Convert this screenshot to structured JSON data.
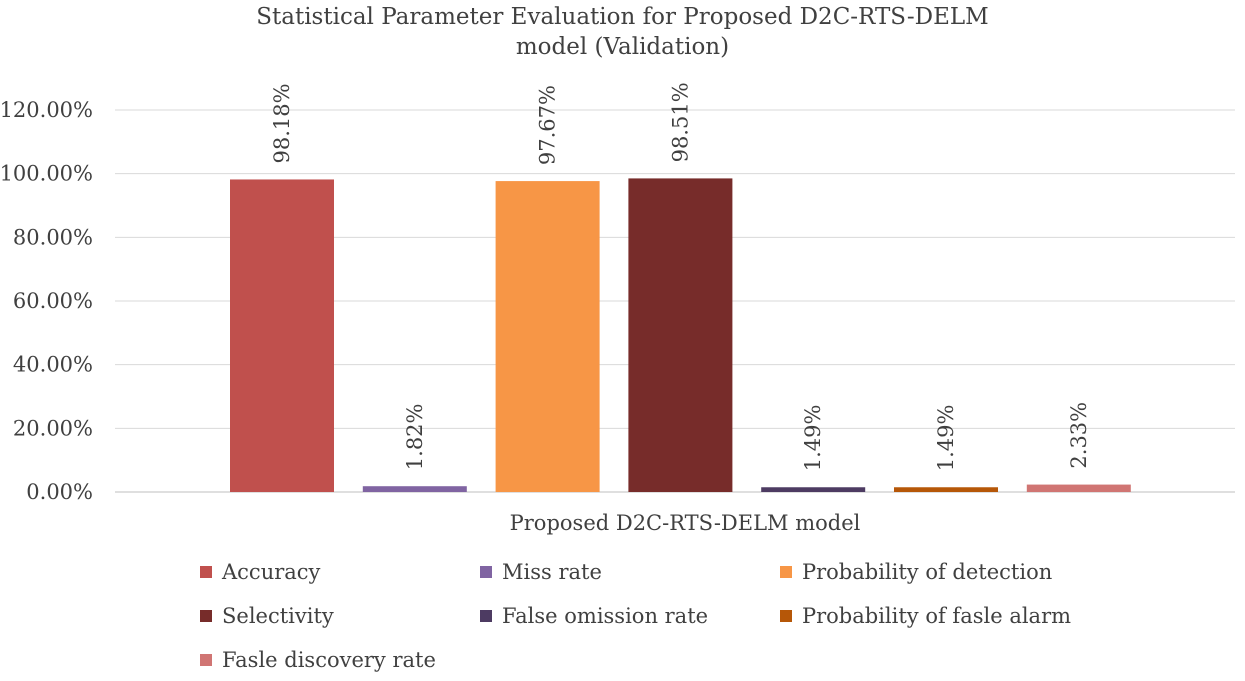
{
  "chart_data": {
    "type": "bar",
    "title_line1": "Statistical Parameter Evaluation for Proposed D2C-RTS-DELM",
    "title_line2": "model (Validation)",
    "xlabel": "Proposed D2C-RTS-DELM model",
    "ylabel": "",
    "ylim": [
      0,
      120
    ],
    "yticks": [
      "0.00%",
      "20.00%",
      "40.00%",
      "60.00%",
      "80.00%",
      "100.00%",
      "120.00%"
    ],
    "grid": true,
    "legend_position": "bottom",
    "series": [
      {
        "name": "Accuracy",
        "value": 98.18,
        "label": "98.18%",
        "color": "#C0504D"
      },
      {
        "name": "Miss rate",
        "value": 1.82,
        "label": "1.82%",
        "color": "#8064A2"
      },
      {
        "name": "Probability of detection",
        "value": 97.67,
        "label": "97.67%",
        "color": "#F79646"
      },
      {
        "name": "Selectivity",
        "value": 98.51,
        "label": "98.51%",
        "color": "#772C2A"
      },
      {
        "name": "False omission rate",
        "value": 1.49,
        "label": "1.49%",
        "color": "#4D3B62"
      },
      {
        "name": "Probability of fasle alarm",
        "value": 1.49,
        "label": "1.49%",
        "color": "#B65708"
      },
      {
        "name": "Fasle discovery rate",
        "value": 2.33,
        "label": "2.33%",
        "color": "#D07573"
      }
    ]
  }
}
